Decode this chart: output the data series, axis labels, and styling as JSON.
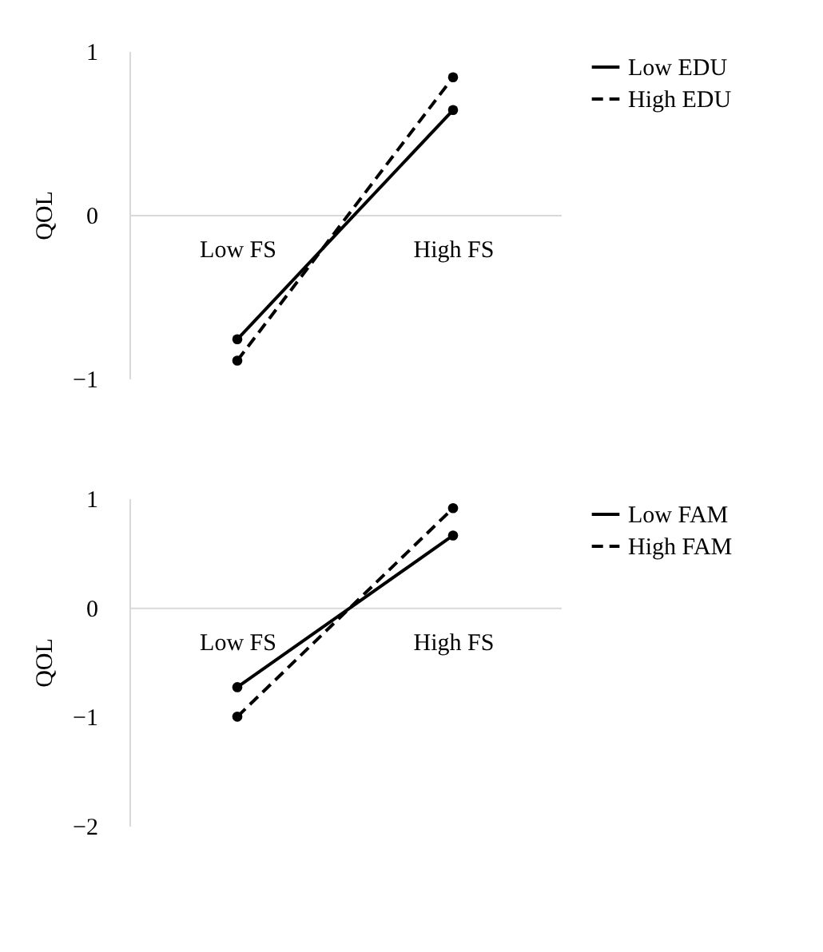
{
  "chart_data": [
    {
      "type": "line",
      "ylabel": "QOL",
      "categories": [
        "Low FS",
        "High FS"
      ],
      "ylim": [
        -1,
        1
      ],
      "yticks": [
        -1,
        0,
        1
      ],
      "grid": false,
      "legend": "right",
      "marker": "circle",
      "series": [
        {
          "name": "Low EDU",
          "color": "#000000",
          "line_style": "solid",
          "values": [
            -0.76,
            0.64
          ]
        },
        {
          "name": "High EDU",
          "color": "#000000",
          "line_style": "dashed",
          "values": [
            -0.89,
            0.84
          ]
        }
      ]
    },
    {
      "type": "line",
      "ylabel": "QOL",
      "categories": [
        "Low FS",
        "High FS"
      ],
      "ylim": [
        -2,
        1
      ],
      "yticks": [
        -2,
        -1,
        0,
        1
      ],
      "grid": false,
      "legend": "right",
      "marker": "circle",
      "series": [
        {
          "name": "Low FAM",
          "color": "#000000",
          "line_style": "solid",
          "values": [
            -0.73,
            0.66
          ]
        },
        {
          "name": "High FAM",
          "color": "#000000",
          "line_style": "dashed",
          "values": [
            -1.0,
            0.91
          ]
        }
      ]
    }
  ]
}
